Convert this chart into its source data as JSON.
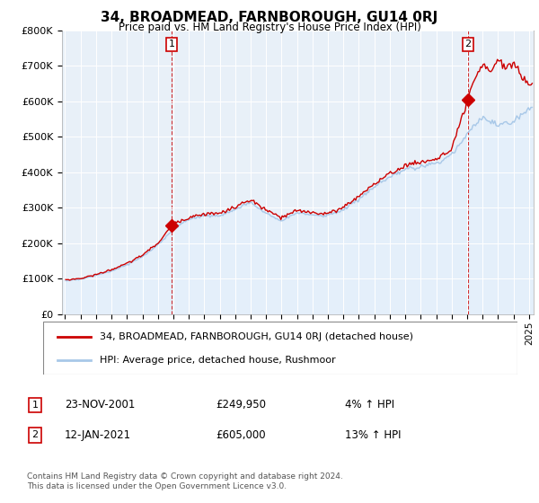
{
  "title": "34, BROADMEAD, FARNBOROUGH, GU14 0RJ",
  "subtitle": "Price paid vs. HM Land Registry's House Price Index (HPI)",
  "ylabel_ticks": [
    "£0",
    "£100K",
    "£200K",
    "£300K",
    "£400K",
    "£500K",
    "£600K",
    "£700K",
    "£800K"
  ],
  "ylim": [
    0,
    800000
  ],
  "xlim_start": 1994.8,
  "xlim_end": 2025.3,
  "transaction1_x": 2001.9,
  "transaction1_y": 249950,
  "transaction2_x": 2021.05,
  "transaction2_y": 605000,
  "legend_line1": "34, BROADMEAD, FARNBOROUGH, GU14 0RJ (detached house)",
  "legend_line2": "HPI: Average price, detached house, Rushmoor",
  "annot1_date": "23-NOV-2001",
  "annot1_price": "£249,950",
  "annot1_hpi": "4% ↑ HPI",
  "annot2_date": "12-JAN-2021",
  "annot2_price": "£605,000",
  "annot2_hpi": "13% ↑ HPI",
  "footer": "Contains HM Land Registry data © Crown copyright and database right 2024.\nThis data is licensed under the Open Government Licence v3.0.",
  "line_color_red": "#cc0000",
  "line_color_blue": "#a8c8e8",
  "fill_color_blue": "#ddeeff",
  "vline_color": "#cc0000",
  "background_color": "#ffffff",
  "plot_bg_color": "#e8f0f8",
  "grid_color": "#ffffff"
}
